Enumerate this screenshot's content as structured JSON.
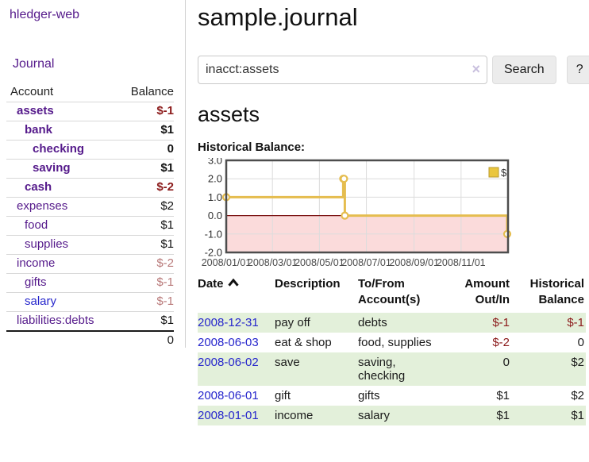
{
  "sidebar": {
    "brand": "hledger-web",
    "nav": {
      "journal": "Journal"
    },
    "accounts": {
      "header": {
        "account": "Account",
        "balance": "Balance"
      },
      "rows": [
        {
          "name": "assets",
          "balance": "$-1"
        },
        {
          "name": "bank",
          "balance": "$1"
        },
        {
          "name": "checking",
          "balance": "0"
        },
        {
          "name": "saving",
          "balance": "$1"
        },
        {
          "name": "cash",
          "balance": "$-2"
        },
        {
          "name": "expenses",
          "balance": "$2"
        },
        {
          "name": "food",
          "balance": "$1"
        },
        {
          "name": "supplies",
          "balance": "$1"
        },
        {
          "name": "income",
          "balance": "$-2"
        },
        {
          "name": "gifts",
          "balance": "$-1"
        },
        {
          "name": "salary",
          "balance": "$-1"
        },
        {
          "name": "liabilities:debts",
          "balance": "$1"
        }
      ],
      "total": "0"
    }
  },
  "header": {
    "title": "sample.journal"
  },
  "search": {
    "query": "inacct:assets",
    "clear_label": "×",
    "button": "Search",
    "help_button": "?"
  },
  "register": {
    "heading": "assets",
    "chart_title": "Historical Balance:",
    "table": {
      "headers": {
        "date": "Date",
        "description": "Description",
        "tofrom": "To/From\nAccount(s)",
        "amount": "Amount\nOut/In",
        "historical": "Historical\nBalance"
      },
      "rows": [
        {
          "date": "2008-12-31",
          "description": "pay off",
          "accounts": "debts",
          "amount": "$-1",
          "balance": "$-1"
        },
        {
          "date": "2008-06-03",
          "description": "eat & shop",
          "accounts": "food, supplies",
          "amount": "$-2",
          "balance": "0"
        },
        {
          "date": "2008-06-02",
          "description": "save",
          "accounts": "saving,\nchecking",
          "amount": "0",
          "balance": "$2"
        },
        {
          "date": "2008-06-01",
          "description": "gift",
          "accounts": "gifts",
          "amount": "$1",
          "balance": "$2"
        },
        {
          "date": "2008-01-01",
          "description": "income",
          "accounts": "salary",
          "amount": "$1",
          "balance": "$1"
        }
      ]
    }
  },
  "chart_data": {
    "type": "line",
    "title": "Historical Balance:",
    "legend": [
      "$"
    ],
    "legend_position": "top-right",
    "grid": true,
    "step": true,
    "x_ticks": [
      "2008/01/01",
      "2008/03/01",
      "2008/05/01",
      "2008/07/01",
      "2008/09/01",
      "2008/11/01"
    ],
    "y_ticks": [
      "3.0",
      "2.0",
      "1.0",
      "0.0",
      "-1.0",
      "-2.0"
    ],
    "xlim": [
      "2008-01-01",
      "2009-01-01"
    ],
    "ylim": [
      -2,
      3
    ],
    "series": [
      {
        "name": "$",
        "points": [
          [
            "2008-01-01",
            1
          ],
          [
            "2008-06-01",
            2
          ],
          [
            "2008-06-02",
            2
          ],
          [
            "2008-06-03",
            0
          ],
          [
            "2008-12-31",
            -1
          ]
        ]
      }
    ],
    "colors": {
      "line": "#e5bd4f",
      "marker_fill": "#ffffff",
      "negative_region": "#fbdbdb",
      "zero_line": "#7a1010",
      "grid": "#dcdcdc",
      "border": "#4d4d4d",
      "legend_fill": "#eac63e",
      "legend_border": "#b89a2e"
    }
  }
}
